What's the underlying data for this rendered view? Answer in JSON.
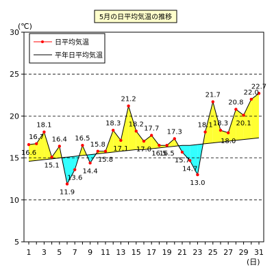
{
  "chart_data": {
    "type": "line",
    "title": "5月の日平均気温の推移",
    "unit_label": "(℃)",
    "x_unit_label": "(日)",
    "ylim": [
      5,
      30
    ],
    "y_ticks": [
      "5",
      "10",
      "15",
      "20",
      "25",
      "30"
    ],
    "x_ticks": [
      "1",
      "3",
      "5",
      "7",
      "9",
      "11",
      "13",
      "15",
      "17",
      "19",
      "21",
      "23",
      "25",
      "27",
      "29",
      "31"
    ],
    "grid": true,
    "legend_position": "top-left",
    "x": [
      1,
      2,
      3,
      4,
      5,
      6,
      7,
      8,
      9,
      10,
      11,
      12,
      13,
      14,
      15,
      16,
      17,
      18,
      19,
      20,
      21,
      22,
      23,
      24,
      25,
      26,
      27,
      28,
      29,
      30,
      31
    ],
    "series": [
      {
        "name": "日平均気温",
        "color": "#ff0000",
        "values": [
          16.6,
          16.7,
          18.1,
          15.1,
          16.4,
          11.9,
          13.6,
          16.5,
          14.4,
          15.8,
          15.8,
          18.3,
          17.1,
          21.2,
          18.2,
          17.0,
          17.7,
          16.5,
          16.5,
          17.3,
          15.7,
          14.7,
          13.0,
          18.1,
          21.7,
          18.3,
          18.0,
          20.8,
          20.1,
          22.0,
          22.7
        ]
      },
      {
        "name": "平年日平均気温",
        "color": "#000000",
        "values": [
          14.6,
          14.7,
          14.8,
          14.9,
          15.0,
          15.1,
          15.2,
          15.3,
          15.4,
          15.5,
          15.6,
          15.7,
          15.8,
          15.9,
          16.0,
          16.0,
          16.1,
          16.2,
          16.3,
          16.4,
          16.5,
          16.5,
          16.6,
          16.7,
          16.8,
          16.9,
          17.0,
          17.1,
          17.2,
          17.3,
          17.4
        ]
      }
    ],
    "data_labels": [
      "16.6",
      "16.7",
      "18.1",
      "15.1",
      "16.4",
      "11.9",
      "13.6",
      "16.5",
      "14.4",
      "15.8",
      "15.8",
      "18.3",
      "17.1",
      "21.2",
      "18.2",
      "17.0",
      "17.7",
      "16.5",
      "16.5",
      "17.3",
      "15.7",
      "14.7",
      "13.0",
      "18.1",
      "21.7",
      "18.3",
      "18.0",
      "20.8",
      "20.1",
      "22.0",
      "22.7"
    ],
    "fill_above_color": "#ffff33",
    "fill_below_color": "#33ffff"
  }
}
